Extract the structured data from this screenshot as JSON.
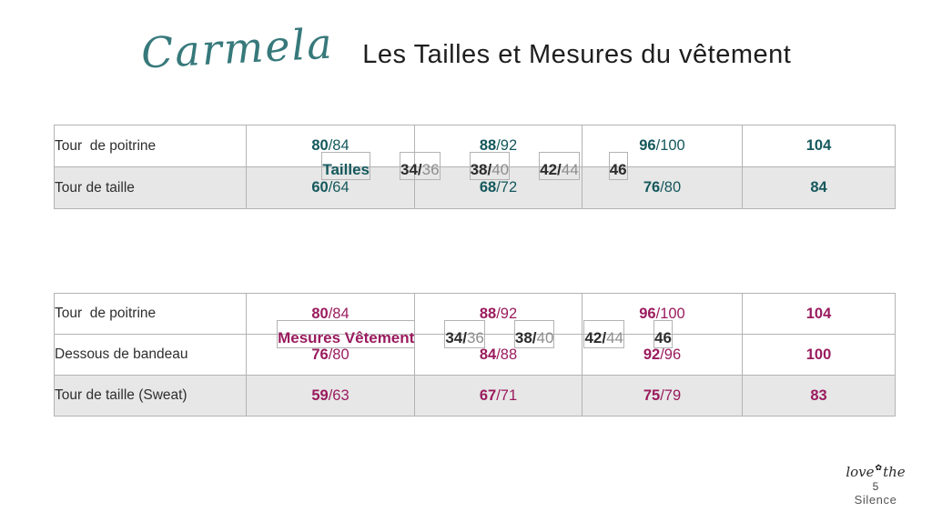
{
  "brand": {
    "logo_text": "Carmela",
    "logo_color": "#37797b"
  },
  "title": "Les Tailles et Mesures du vêtement",
  "tables": [
    {
      "name": "tailles",
      "accent": "#14585c",
      "header_label": "Tailles",
      "columns": [
        "34/36",
        "38/40",
        "42/44",
        "46"
      ],
      "rows": [
        {
          "label": "Tour  de poitrine",
          "values": [
            "80/84",
            "88/92",
            "96/100",
            "104"
          ],
          "shaded": false
        },
        {
          "label": "Tour de taille",
          "values": [
            "60/64",
            "68/72",
            "76/80",
            "84"
          ],
          "shaded": true
        }
      ]
    },
    {
      "name": "mesures-vetement",
      "accent": "#9a1b5e",
      "header_label": "Mesures Vêtement",
      "columns": [
        "34/36",
        "38/40",
        "42/44",
        "46"
      ],
      "rows": [
        {
          "label": "Tour  de poitrine",
          "values": [
            "80/84",
            "88/92",
            "96/100",
            "104"
          ],
          "shaded": false
        },
        {
          "label": "Dessous de bandeau",
          "values": [
            "76/80",
            "84/88",
            "92/96",
            "100"
          ],
          "shaded": false
        },
        {
          "label": "Tour de taille (Sweat)",
          "values": [
            "59/63",
            "67/71",
            "75/79",
            "83"
          ],
          "shaded": true
        }
      ]
    }
  ],
  "footer": {
    "script_left": "love",
    "flower_glyph": "✿",
    "script_right": "the",
    "page_number": "5",
    "brand_name": "Silence"
  }
}
